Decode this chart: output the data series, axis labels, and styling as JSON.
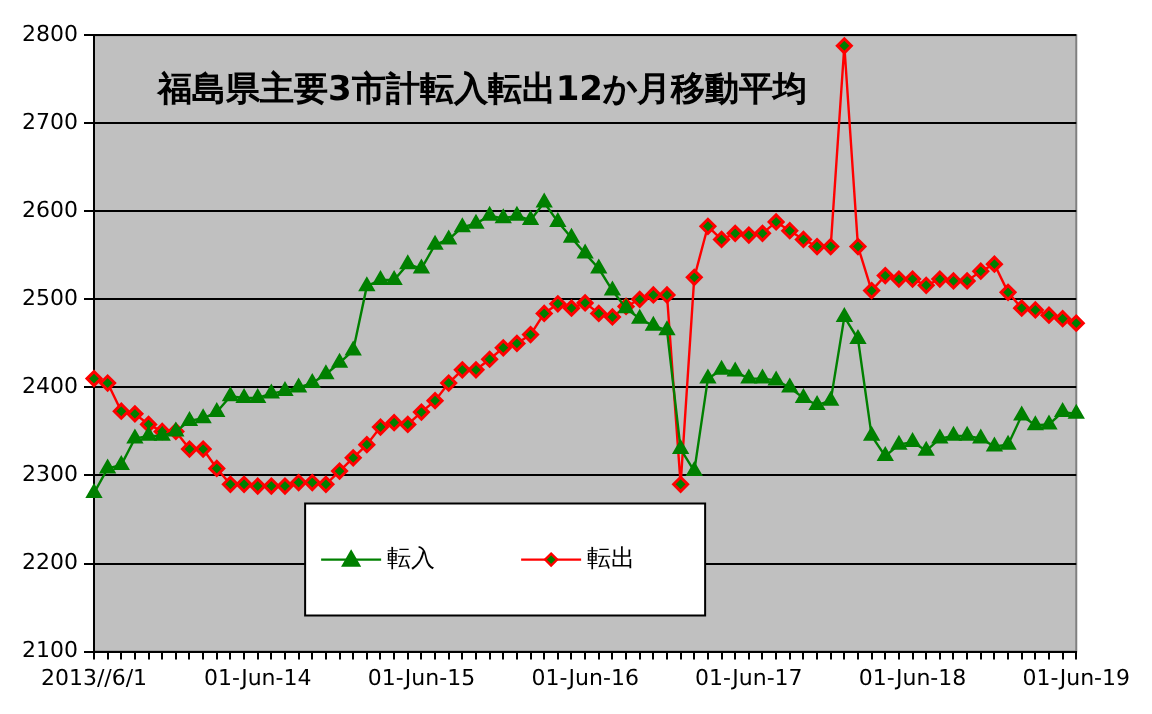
{
  "chart_data": {
    "type": "line",
    "title": "福島県主要3市計転入転出12か月移動平均",
    "categories": [
      "2013//6/1",
      null,
      null,
      null,
      null,
      null,
      null,
      null,
      null,
      null,
      null,
      null,
      "01-Jun-14",
      null,
      null,
      null,
      null,
      null,
      null,
      null,
      null,
      null,
      null,
      null,
      "01-Jun-15",
      null,
      null,
      null,
      null,
      null,
      null,
      null,
      null,
      null,
      null,
      null,
      "01-Jun-16",
      null,
      null,
      null,
      null,
      null,
      null,
      null,
      null,
      null,
      null,
      null,
      "01-Jun-17",
      null,
      null,
      null,
      null,
      null,
      null,
      null,
      null,
      null,
      null,
      null,
      "01-Jun-18",
      null,
      null,
      null,
      null,
      null,
      null,
      null,
      null,
      null,
      null,
      null,
      "01-Jun-19"
    ],
    "series": [
      {
        "name": "転入",
        "color": "#008000",
        "marker": "triangle",
        "values": [
          2280,
          2308,
          2312,
          2342,
          2345,
          2345,
          2350,
          2362,
          2365,
          2372,
          2390,
          2388,
          2388,
          2393,
          2396,
          2400,
          2405,
          2415,
          2428,
          2442,
          2515,
          2522,
          2522,
          2540,
          2535,
          2562,
          2568,
          2582,
          2586,
          2595,
          2592,
          2595,
          2590,
          2610,
          2588,
          2570,
          2552,
          2535,
          2510,
          2490,
          2478,
          2470,
          2465,
          2330,
          2305,
          2410,
          2420,
          2418,
          2410,
          2410,
          2408,
          2400,
          2388,
          2380,
          2385,
          2480,
          2455,
          2345,
          2322,
          2335,
          2338,
          2328,
          2342,
          2345,
          2345,
          2342,
          2333,
          2335,
          2368,
          2357,
          2358,
          2372,
          2370
        ]
      },
      {
        "name": "転出",
        "color": "#ff0000",
        "marker": "diamond",
        "values": [
          2410,
          2405,
          2373,
          2370,
          2358,
          2350,
          2350,
          2330,
          2330,
          2308,
          2290,
          2290,
          2288,
          2288,
          2288,
          2292,
          2292,
          2290,
          2305,
          2320,
          2335,
          2355,
          2360,
          2358,
          2372,
          2385,
          2405,
          2420,
          2420,
          2432,
          2445,
          2450,
          2460,
          2484,
          2495,
          2490,
          2496,
          2484,
          2480,
          2492,
          2500,
          2505,
          2505,
          2290,
          2525,
          2583,
          2568,
          2575,
          2573,
          2575,
          2588,
          2578,
          2568,
          2560,
          2560,
          2788,
          2560,
          2510,
          2527,
          2523,
          2523,
          2516,
          2523,
          2521,
          2521,
          2532,
          2540,
          2508,
          2490,
          2488,
          2482,
          2478,
          2473
        ]
      }
    ],
    "ylim": [
      2100,
      2800
    ],
    "yticks": [
      2100,
      2200,
      2300,
      2400,
      2500,
      2600,
      2700,
      2800
    ],
    "grid": "y",
    "legend": "bottom"
  }
}
